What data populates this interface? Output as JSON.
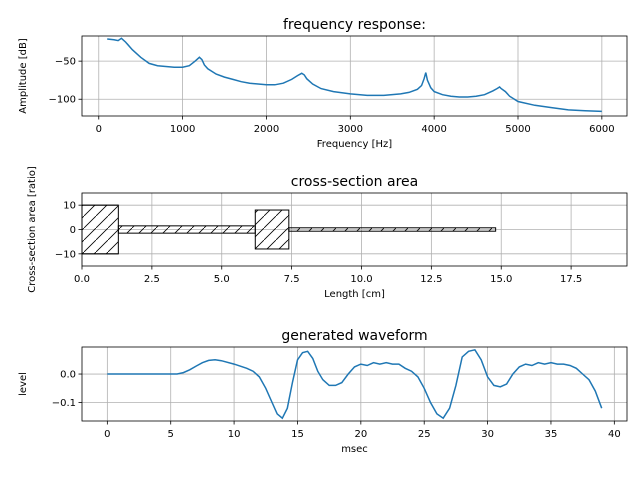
{
  "chart_data": [
    {
      "type": "line",
      "title": "frequency response:",
      "xlabel": "Frequency [Hz]",
      "ylabel": "Amplitude [dB]",
      "xlim": [
        -200,
        6300
      ],
      "ylim": [
        -122,
        -17
      ],
      "xticks": [
        0,
        1000,
        2000,
        3000,
        4000,
        5000,
        6000
      ],
      "yticks": [
        -50,
        -100
      ],
      "grid": true,
      "color": "#1f77b4",
      "series": [
        {
          "x": [
            100,
            180,
            230,
            270,
            320,
            400,
            500,
            600,
            700,
            800,
            900,
            1000,
            1080,
            1150,
            1200,
            1230,
            1260,
            1300,
            1400,
            1500,
            1600,
            1700,
            1800,
            1900,
            2000,
            2100,
            2200,
            2300,
            2370,
            2420,
            2450,
            2480,
            2550,
            2650,
            2800,
            3000,
            3200,
            3400,
            3600,
            3700,
            3800,
            3850,
            3880,
            3900,
            3920,
            3960,
            4000,
            4100,
            4200,
            4300,
            4400,
            4500,
            4600,
            4700,
            4750,
            4780,
            4800,
            4850,
            4900,
            5000,
            5200,
            5400,
            5600,
            5800,
            6000
          ],
          "y": [
            -21,
            -22,
            -23,
            -20,
            -25,
            -35,
            -45,
            -53,
            -56,
            -57,
            -58,
            -58,
            -56,
            -50,
            -45,
            -48,
            -55,
            -60,
            -67,
            -71,
            -74,
            -77,
            -79,
            -80,
            -81,
            -81,
            -79,
            -74,
            -69,
            -66,
            -68,
            -73,
            -80,
            -86,
            -90,
            -93,
            -95,
            -95,
            -93,
            -91,
            -87,
            -82,
            -73,
            -65,
            -75,
            -85,
            -90,
            -94,
            -96,
            -97,
            -97,
            -96,
            -94,
            -89,
            -86,
            -84,
            -86,
            -90,
            -96,
            -103,
            -108,
            -111,
            -114,
            -115,
            -116
          ]
        }
      ]
    },
    {
      "type": "area",
      "title": "cross-section area",
      "xlabel": "Length [cm]",
      "ylabel": "Cross-section area [ratio]",
      "xlim": [
        0,
        19.5
      ],
      "ylim": [
        -15,
        15
      ],
      "xticks": [
        0.0,
        2.5,
        5.0,
        7.5,
        10.0,
        12.5,
        15.0,
        17.5
      ],
      "yticks": [
        10,
        0,
        -10
      ],
      "grid": true,
      "sections": [
        {
          "x0": 0.0,
          "x1": 1.3,
          "area": 10
        },
        {
          "x0": 1.3,
          "x1": 6.2,
          "area": 1.5
        },
        {
          "x0": 6.2,
          "x1": 7.4,
          "area": 8
        },
        {
          "x0": 7.4,
          "x1": 14.8,
          "area": 0.7
        }
      ]
    },
    {
      "type": "line",
      "title": "generated waveform",
      "xlabel": "msec",
      "ylabel": "level",
      "xlim": [
        -2,
        41
      ],
      "ylim": [
        -0.165,
        0.095
      ],
      "xticks": [
        0,
        5,
        10,
        15,
        20,
        25,
        30,
        35,
        40
      ],
      "yticks": [
        0.0,
        -0.1
      ],
      "ytick_labels": [
        "0.0",
        "−0.1"
      ],
      "grid": true,
      "color": "#1f77b4",
      "series": [
        {
          "x": [
            0,
            3,
            5.5,
            6,
            6.5,
            7,
            7.5,
            8,
            8.5,
            9,
            10,
            11,
            11.5,
            12,
            12.5,
            13,
            13.4,
            13.8,
            14.2,
            14.6,
            15,
            15.4,
            15.8,
            16.2,
            16.6,
            17,
            17.5,
            18,
            18.5,
            19,
            19.5,
            20,
            20.5,
            21,
            21.5,
            22,
            22.5,
            23,
            23.5,
            24,
            24.5,
            25,
            25.5,
            26,
            26.5,
            27,
            27.5,
            28,
            28.5,
            29,
            29.5,
            30,
            30.5,
            31,
            31.5,
            32,
            32.5,
            33,
            33.5,
            34,
            34.5,
            35,
            35.5,
            36,
            36.5,
            37,
            37.5,
            38,
            38.5,
            39
          ],
          "y": [
            0,
            0,
            0,
            0.005,
            0.015,
            0.028,
            0.04,
            0.048,
            0.05,
            0.047,
            0.035,
            0.02,
            0.01,
            -0.01,
            -0.05,
            -0.1,
            -0.14,
            -0.155,
            -0.12,
            -0.03,
            0.05,
            0.075,
            0.08,
            0.055,
            0.01,
            -0.02,
            -0.04,
            -0.04,
            -0.03,
            0.0,
            0.025,
            0.035,
            0.03,
            0.04,
            0.035,
            0.04,
            0.035,
            0.035,
            0.02,
            0.01,
            -0.01,
            -0.05,
            -0.1,
            -0.14,
            -0.155,
            -0.12,
            -0.04,
            0.06,
            0.08,
            0.085,
            0.05,
            -0.01,
            -0.04,
            -0.045,
            -0.035,
            0.0,
            0.025,
            0.035,
            0.03,
            0.04,
            0.035,
            0.04,
            0.035,
            0.035,
            0.03,
            0.02,
            0.0,
            -0.02,
            -0.06,
            -0.12
          ]
        }
      ]
    }
  ]
}
